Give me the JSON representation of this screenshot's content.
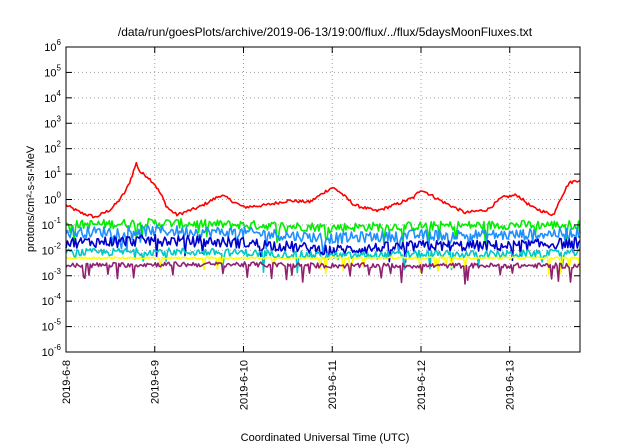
{
  "chart_data": {
    "type": "line",
    "title": "/data/run/goesPlots/archive/2019-06-13/19:00/flux/../flux/5daysMoonFluxes.txt",
    "xlabel": "Coordinated Universal Time (UTC)",
    "ylabel": "protons/cm²-s-sr-MeV",
    "y_scale": "log",
    "ylim": [
      1e-06,
      1000000.0
    ],
    "y_tick_exponents": [
      -6,
      -5,
      -4,
      -3,
      -2,
      -1,
      0,
      1,
      2,
      3,
      4,
      5,
      6
    ],
    "xlim": [
      "2019-06-08 00:00",
      "2019-06-13 19:00"
    ],
    "x_ticks": [
      "2019-6-8",
      "2019-6-9",
      "2019-6-10",
      "2019-6-11",
      "2019-6-12",
      "2019-6-13"
    ],
    "grid": true,
    "legend": "none",
    "series": [
      {
        "color": "#ff0000",
        "x": [
          "2019-06-08 00:00",
          "2019-06-08 04:00",
          "2019-06-08 08:00",
          "2019-06-08 12:00",
          "2019-06-08 14:00",
          "2019-06-08 16:00",
          "2019-06-08 17:00",
          "2019-06-08 18:00",
          "2019-06-08 19:00",
          "2019-06-08 20:00",
          "2019-06-08 22:00",
          "2019-06-09 00:00",
          "2019-06-09 02:00",
          "2019-06-09 03:00",
          "2019-06-09 04:00",
          "2019-06-09 06:00",
          "2019-06-09 09:00",
          "2019-06-09 12:00",
          "2019-06-09 18:00",
          "2019-06-10 00:00",
          "2019-06-10 06:00",
          "2019-06-10 12:00",
          "2019-06-10 18:00",
          "2019-06-10 22:00",
          "2019-06-11 00:00",
          "2019-06-11 02:00",
          "2019-06-11 06:00",
          "2019-06-11 12:00",
          "2019-06-11 18:00",
          "2019-06-11 22:00",
          "2019-06-12 00:00",
          "2019-06-12 06:00",
          "2019-06-12 12:00",
          "2019-06-12 18:00",
          "2019-06-12 22:00",
          "2019-06-13 02:00",
          "2019-06-13 06:00",
          "2019-06-13 10:00",
          "2019-06-13 12:00",
          "2019-06-13 13:00",
          "2019-06-13 16:00",
          "2019-06-13 19:00"
        ],
        "y": [
          0.6,
          0.3,
          0.2,
          0.4,
          0.8,
          2,
          4,
          10,
          27,
          12,
          8,
          4,
          1.3,
          0.6,
          0.4,
          0.25,
          0.35,
          0.5,
          1.5,
          0.5,
          0.6,
          0.9,
          0.8,
          2,
          3,
          2,
          0.6,
          0.35,
          0.7,
          1.2,
          2.5,
          0.8,
          0.3,
          0.4,
          1.2,
          1.5,
          0.5,
          0.3,
          0.25,
          0.7,
          4.5,
          6
        ]
      },
      {
        "color": "#00ee00",
        "x": [
          "2019-06-08 00:00",
          "2019-06-09 00:00",
          "2019-06-10 00:00",
          "2019-06-11 00:00",
          "2019-06-12 00:00",
          "2019-06-13 00:00",
          "2019-06-13 19:00"
        ],
        "y": [
          0.1,
          0.12,
          0.1,
          0.08,
          0.09,
          0.1,
          0.1
        ]
      },
      {
        "color": "#1e90ff",
        "x": [
          "2019-06-08 00:00",
          "2019-06-09 00:00",
          "2019-06-10 00:00",
          "2019-06-11 00:00",
          "2019-06-12 00:00",
          "2019-06-13 00:00",
          "2019-06-13 19:00"
        ],
        "y": [
          0.05,
          0.06,
          0.05,
          0.03,
          0.04,
          0.04,
          0.05
        ]
      },
      {
        "color": "#0000cd",
        "x": [
          "2019-06-08 00:00",
          "2019-06-09 00:00",
          "2019-06-10 00:00",
          "2019-06-11 00:00",
          "2019-06-12 00:00",
          "2019-06-13 00:00",
          "2019-06-13 19:00"
        ],
        "y": [
          0.02,
          0.025,
          0.02,
          0.01,
          0.015,
          0.015,
          0.02
        ]
      },
      {
        "color": "#00c8c8",
        "x": [
          "2019-06-08 00:00",
          "2019-06-09 00:00",
          "2019-06-10 00:00",
          "2019-06-11 00:00",
          "2019-06-12 00:00",
          "2019-06-13 00:00",
          "2019-06-13 19:00"
        ],
        "y": [
          0.008,
          0.009,
          0.008,
          0.006,
          0.007,
          0.007,
          0.008
        ]
      },
      {
        "color": "#ffff00",
        "x": [
          "2019-06-08 00:00",
          "2019-06-09 00:00",
          "2019-06-10 00:00",
          "2019-06-11 00:00",
          "2019-06-12 00:00",
          "2019-06-13 00:00",
          "2019-06-13 19:00"
        ],
        "y": [
          0.005,
          0.005,
          0.005,
          0.005,
          0.005,
          0.005,
          0.005
        ]
      },
      {
        "color": "#902070",
        "x": [
          "2019-06-08 00:00",
          "2019-06-09 00:00",
          "2019-06-10 00:00",
          "2019-06-11 00:00",
          "2019-06-12 00:00",
          "2019-06-13 00:00",
          "2019-06-13 19:00"
        ],
        "y": [
          0.0025,
          0.0028,
          0.0028,
          0.0025,
          0.0025,
          0.0025,
          0.0025
        ]
      }
    ]
  }
}
